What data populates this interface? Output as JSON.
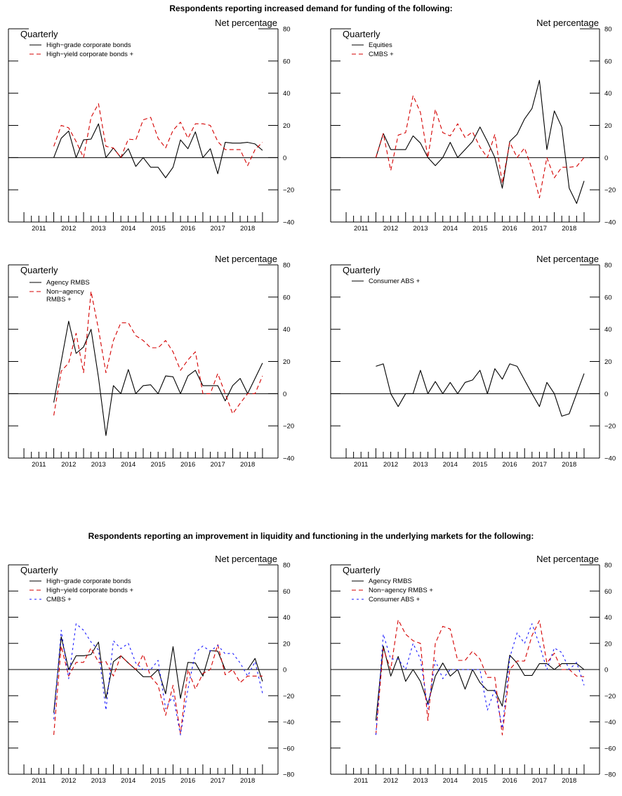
{
  "section_titles": [
    "Respondents reporting increased demand for funding of the following:",
    "Respondents reporting an improvement in liquidity and functioning in the underlying markets for the following:"
  ],
  "colors": {
    "black": "#000000",
    "red": "#d40000",
    "blue": "#1a1aff"
  },
  "chart_data": [
    {
      "type": "line",
      "frequency_label": "Quarterly",
      "ylabel": "Net percentage",
      "ylim": [
        -40,
        80
      ],
      "yticks": [
        80,
        60,
        40,
        20,
        0,
        -20,
        -40
      ],
      "xticks": [
        "2011",
        "2012",
        "2013",
        "2014",
        "2015",
        "2016",
        "2017",
        "2018"
      ],
      "x_start": 2012,
      "x_step": 0.25,
      "series": [
        {
          "name": "High−grade corporate bonds",
          "style": "solid",
          "color": "#000000",
          "values": [
            0,
            12,
            16.5,
            0,
            11,
            11.5,
            21,
            0,
            6,
            0,
            5.5,
            -5.5,
            0,
            -6,
            -6,
            -12.5,
            -6,
            11,
            5.5,
            16,
            0,
            5.5,
            -10,
            9.5,
            9,
            9,
            9.5,
            8.5,
            4.5
          ]
        },
        {
          "name": "High−yield corporate bonds +",
          "style": "dashed",
          "color": "#d40000",
          "values": [
            7,
            20,
            18.5,
            10,
            0,
            25,
            33.5,
            7,
            6,
            0,
            11.5,
            11,
            23.5,
            25,
            12,
            6,
            17,
            22,
            12,
            21,
            21,
            20,
            10,
            5,
            5,
            5,
            -5,
            5,
            9.5
          ]
        }
      ]
    },
    {
      "type": "line",
      "frequency_label": "Quarterly",
      "ylabel": "Net percentage",
      "ylim": [
        -40,
        80
      ],
      "yticks": [
        80,
        60,
        40,
        20,
        0,
        -20,
        -40
      ],
      "xticks": [
        "2011",
        "2012",
        "2013",
        "2014",
        "2015",
        "2016",
        "2017",
        "2018"
      ],
      "x_start": 2012,
      "x_step": 0.25,
      "series": [
        {
          "name": "Equities",
          "style": "solid",
          "color": "#000000",
          "values": [
            0,
            15,
            5,
            5,
            5,
            13.5,
            9,
            0,
            -5,
            0,
            9.5,
            0,
            5,
            10,
            19,
            10,
            0,
            -19,
            10,
            14.5,
            24,
            30.5,
            48,
            5,
            29,
            19,
            -19,
            -28.5,
            -14.5
          ]
        },
        {
          "name": "CMBS +",
          "style": "dashed",
          "color": "#d40000",
          "values": [
            0,
            15,
            -8,
            14,
            15.5,
            38.5,
            28,
            0,
            30,
            15.5,
            13.5,
            21,
            12.5,
            16,
            6.5,
            0,
            14.5,
            -16,
            9.5,
            0,
            6,
            -7,
            -25,
            0,
            -12.5,
            -6,
            -6,
            -5.5,
            0
          ]
        }
      ]
    },
    {
      "type": "line",
      "frequency_label": "Quarterly",
      "ylabel": "Net percentage",
      "ylim": [
        -40,
        80
      ],
      "yticks": [
        80,
        60,
        40,
        20,
        0,
        -20,
        -40
      ],
      "xticks": [
        "2011",
        "2012",
        "2013",
        "2014",
        "2015",
        "2016",
        "2017",
        "2018"
      ],
      "x_start": 2012,
      "x_step": 0.25,
      "series": [
        {
          "name": "Agency RMBS",
          "style": "solid",
          "color": "#000000",
          "values": [
            -5.5,
            20,
            45,
            25,
            29,
            40,
            10,
            -26,
            5,
            0,
            15,
            0,
            5,
            5.5,
            0,
            11,
            10.5,
            0,
            11,
            14.5,
            5,
            5,
            5,
            -4.5,
            5,
            9.5,
            0,
            9.5,
            19
          ]
        },
        {
          "name": "Non−agency",
          "name_line2": "RMBS +",
          "style": "dashed",
          "color": "#d40000",
          "values": [
            -13.5,
            14,
            19,
            37.5,
            13,
            63.5,
            40,
            13,
            33,
            44,
            44,
            36,
            33,
            28.5,
            28.5,
            33,
            26,
            14.5,
            21,
            26,
            0,
            0,
            12.5,
            0,
            -12.5,
            -6,
            0,
            0,
            11
          ]
        }
      ]
    },
    {
      "type": "line",
      "frequency_label": "Quarterly",
      "ylabel": "Net percentage",
      "ylim": [
        -40,
        80
      ],
      "yticks": [
        80,
        60,
        40,
        20,
        0,
        -20,
        -40
      ],
      "xticks": [
        "2011",
        "2012",
        "2013",
        "2014",
        "2015",
        "2016",
        "2017",
        "2018"
      ],
      "x_start": 2012,
      "x_step": 0.25,
      "series": [
        {
          "name": "Consumer ABS +",
          "style": "solid",
          "color": "#000000",
          "values": [
            17,
            18.5,
            0,
            -8,
            0,
            0,
            14.5,
            0,
            7.5,
            0,
            7,
            0,
            7,
            8.5,
            14.5,
            0,
            15.5,
            9,
            18.5,
            17,
            8.5,
            0,
            -8,
            7,
            0,
            -14,
            -12.5,
            0,
            12.5
          ]
        }
      ]
    },
    {
      "type": "line",
      "frequency_label": "Quarterly",
      "ylabel": "Net percentage",
      "ylim": [
        -80,
        80
      ],
      "yticks": [
        80,
        60,
        40,
        20,
        0,
        -20,
        -40,
        -60,
        -80
      ],
      "xticks": [
        "2011",
        "2012",
        "2013",
        "2014",
        "2015",
        "2016",
        "2017",
        "2018"
      ],
      "x_start": 2012,
      "x_step": 0.25,
      "series": [
        {
          "name": "High−grade corporate bonds",
          "style": "solid",
          "color": "#000000",
          "values": [
            -33,
            25,
            0,
            10.5,
            10.5,
            11.5,
            21,
            -22,
            6,
            10.5,
            5,
            0,
            -5.5,
            -5.5,
            0,
            -18.5,
            17.5,
            -22,
            5.5,
            5,
            -5,
            14.5,
            14,
            0,
            0,
            0,
            0,
            8.5,
            -9
          ]
        },
        {
          "name": "High−yield corporate bonds +",
          "style": "dashed",
          "color": "#d40000",
          "values": [
            -50,
            18,
            -5,
            5.5,
            5.5,
            16.5,
            5.5,
            6,
            -5,
            10.5,
            5,
            0,
            11.5,
            -5.5,
            -12,
            -35,
            -12,
            -49,
            0,
            -15,
            -3,
            0,
            19,
            -4,
            0,
            -10,
            -5,
            -5,
            -5
          ]
        },
        {
          "name": "CMBS +",
          "style": "dotted",
          "color": "#1a1aff",
          "values": [
            -38,
            30,
            -7,
            35,
            30,
            21,
            15,
            -31,
            22,
            16,
            20,
            5,
            0,
            0,
            7,
            -30,
            -20,
            -50,
            -15,
            13,
            18,
            14,
            18.5,
            12,
            12.5,
            5,
            -5,
            6,
            -18
          ]
        }
      ]
    },
    {
      "type": "line",
      "frequency_label": "Quarterly",
      "ylabel": "Net percentage",
      "ylim": [
        -80,
        80
      ],
      "yticks": [
        80,
        60,
        40,
        20,
        0,
        -20,
        -40,
        -60,
        -80
      ],
      "xticks": [
        "2011",
        "2012",
        "2013",
        "2014",
        "2015",
        "2016",
        "2017",
        "2018"
      ],
      "x_start": 2012,
      "x_step": 0.25,
      "series": [
        {
          "name": "Agency RMBS",
          "style": "solid",
          "color": "#000000",
          "values": [
            -39,
            18,
            -5,
            10,
            -9,
            0,
            -9,
            -26,
            -5,
            5,
            -5,
            0,
            -15,
            0,
            -10,
            -16,
            -16,
            -28,
            11,
            5,
            -4.5,
            -4.5,
            4.5,
            4.5,
            0,
            4.5,
            4.5,
            4.5,
            0
          ]
        },
        {
          "name": "Non−agency RMBS +",
          "style": "dashed",
          "color": "#d40000",
          "values": [
            -50,
            16,
            0,
            38,
            27,
            22,
            20,
            -39,
            20,
            33,
            31,
            7,
            7,
            14,
            8,
            -6,
            -6,
            -50,
            0,
            6.5,
            6.5,
            26,
            37.5,
            5,
            12.5,
            0,
            0,
            -5,
            -5.5
          ]
        },
        {
          "name": "Consumer ABS +",
          "style": "dotted",
          "color": "#1a1aff",
          "values": [
            -50,
            27,
            8,
            8,
            0,
            20,
            8,
            -30,
            7,
            -7,
            0,
            0,
            0,
            0,
            0,
            -31,
            -15,
            -45,
            9,
            28,
            20,
            35,
            19,
            0,
            16.5,
            13,
            0,
            5.5,
            -12
          ]
        }
      ]
    }
  ]
}
